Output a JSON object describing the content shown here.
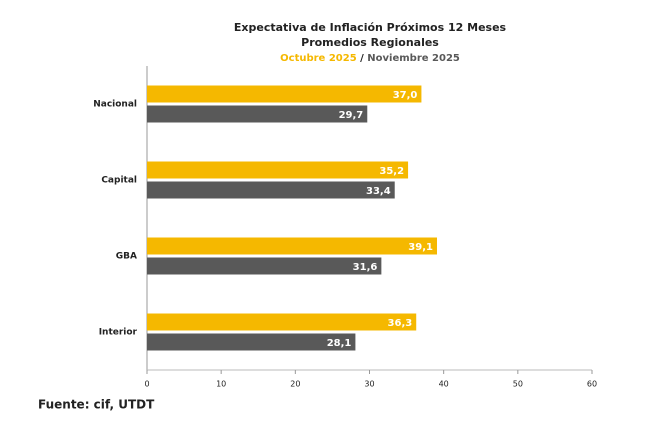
{
  "chart_data": {
    "type": "hbar",
    "title": "Expectativa de Inflación Próximos 12 Meses",
    "subtitle": "Promedios Regionales",
    "legend_separator": " / ",
    "source": "Fuente: cif, UTDT",
    "categories": [
      "Nacional",
      "Capital",
      "GBA",
      "Interior"
    ],
    "series": [
      {
        "name": "Octubre 2025",
        "color": "#f5b800",
        "values": [
          37.0,
          35.2,
          39.1,
          36.3
        ],
        "value_labels": [
          "37,0",
          "35,2",
          "39,1",
          "36,3"
        ]
      },
      {
        "name": "Noviembre 2025",
        "color": "#595959",
        "values": [
          29.7,
          33.4,
          31.6,
          28.1
        ],
        "value_labels": [
          "29,7",
          "33,4",
          "31,6",
          "28,1"
        ]
      }
    ],
    "xlim": [
      0,
      60
    ],
    "xticks": [
      0,
      10,
      20,
      30,
      40,
      50,
      60
    ],
    "grid": false
  }
}
